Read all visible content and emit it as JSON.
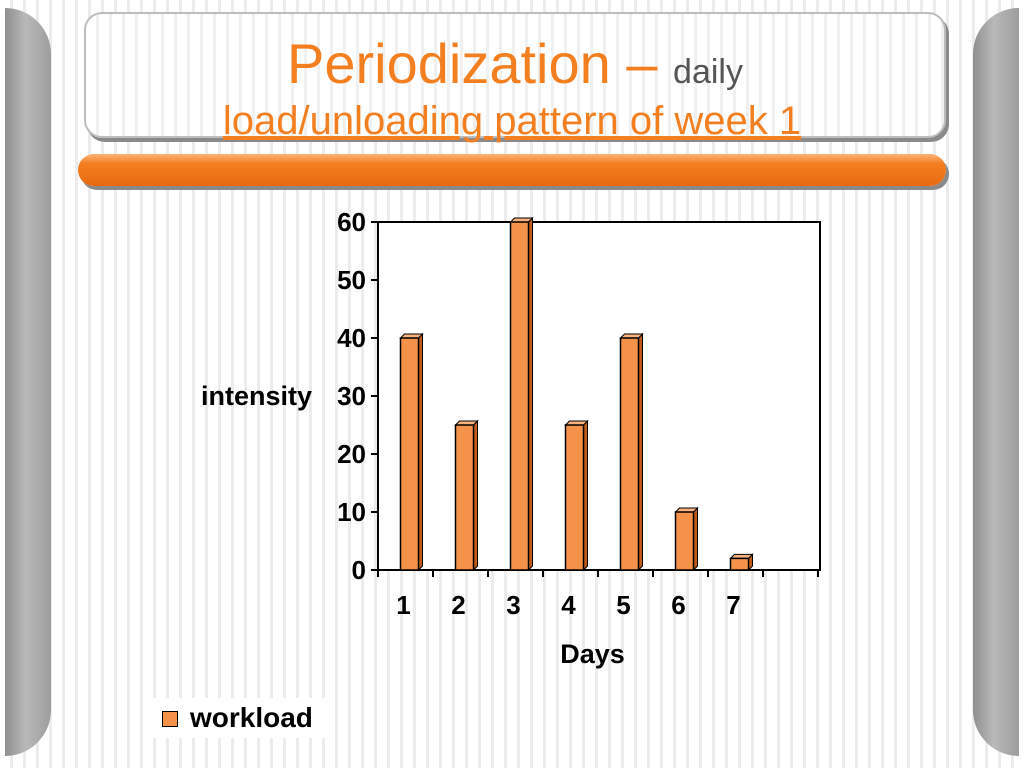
{
  "slide": {
    "title_main": "Periodization – ",
    "title_small": "daily",
    "title_sub": "load/unloading pattern of week 1"
  },
  "colors": {
    "accent": "#f47f20",
    "bar_front": "#f4924a",
    "bar_side": "#c05a18",
    "bar_top": "#f9b27d"
  },
  "chart_data": {
    "type": "bar",
    "categories": [
      "1",
      "2",
      "3",
      "4",
      "5",
      "6",
      "7"
    ],
    "series": [
      {
        "name": "workload",
        "values": [
          40,
          25,
          60,
          25,
          40,
          10,
          2
        ]
      }
    ],
    "xlabel": "Days",
    "ylabel": "intensity",
    "ylim": [
      0,
      60
    ],
    "yticks": [
      0,
      10,
      20,
      30,
      40,
      50,
      60
    ],
    "grid": false,
    "legend": "bottom-left"
  }
}
